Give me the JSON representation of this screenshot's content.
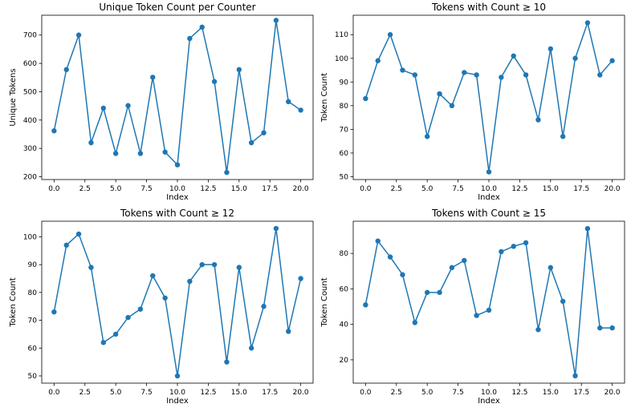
{
  "colors": {
    "series": "#1f77b4",
    "axes": "#000000",
    "background": "#ffffff"
  },
  "chart_data": [
    {
      "type": "line",
      "title": "Unique Token Count per Counter",
      "xlabel": "Index",
      "ylabel": "Unique Tokens",
      "xlim": [
        -1,
        21
      ],
      "ylim": [
        190,
        770
      ],
      "xticks": [
        0,
        2.5,
        5,
        7.5,
        10,
        12.5,
        15,
        17.5,
        20
      ],
      "xtick_labels": [
        "0.0",
        "2.5",
        "5.0",
        "7.5",
        "10.0",
        "12.5",
        "15.0",
        "17.5",
        "20.0"
      ],
      "yticks": [
        200,
        300,
        400,
        500,
        600,
        700
      ],
      "ytick_labels": [
        "200",
        "300",
        "400",
        "500",
        "600",
        "700"
      ],
      "grid": false,
      "marker": "circle",
      "x": [
        0,
        1,
        2,
        3,
        4,
        5,
        6,
        7,
        8,
        9,
        10,
        11,
        12,
        13,
        14,
        15,
        16,
        17,
        18,
        19,
        20
      ],
      "y": [
        362,
        578,
        700,
        320,
        442,
        282,
        451,
        282,
        551,
        287,
        242,
        688,
        728,
        536,
        215,
        578,
        320,
        355,
        752,
        465,
        435
      ]
    },
    {
      "type": "line",
      "title": "Tokens with Count ≥ 10",
      "xlabel": "Index",
      "ylabel": "Token Count",
      "xlim": [
        -1,
        21
      ],
      "ylim": [
        48.8,
        118.2
      ],
      "xticks": [
        0,
        2.5,
        5,
        7.5,
        10,
        12.5,
        15,
        17.5,
        20
      ],
      "xtick_labels": [
        "0.0",
        "2.5",
        "5.0",
        "7.5",
        "10.0",
        "12.5",
        "15.0",
        "17.5",
        "20.0"
      ],
      "yticks": [
        50,
        60,
        70,
        80,
        90,
        100,
        110
      ],
      "ytick_labels": [
        "50",
        "60",
        "70",
        "80",
        "90",
        "100",
        "110"
      ],
      "grid": false,
      "marker": "circle",
      "x": [
        0,
        1,
        2,
        3,
        4,
        5,
        6,
        7,
        8,
        9,
        10,
        11,
        12,
        13,
        14,
        15,
        16,
        17,
        18,
        19,
        20
      ],
      "y": [
        83,
        99,
        110,
        95,
        93,
        67,
        85,
        80,
        94,
        93,
        52,
        92,
        101,
        93,
        74,
        104,
        67,
        100,
        115,
        93,
        99
      ]
    },
    {
      "type": "line",
      "title": "Tokens with Count ≥ 12",
      "xlabel": "Index",
      "ylabel": "Token Count",
      "xlim": [
        -1,
        21
      ],
      "ylim": [
        47.4,
        105.6
      ],
      "xticks": [
        0,
        2.5,
        5,
        7.5,
        10,
        12.5,
        15,
        17.5,
        20
      ],
      "xtick_labels": [
        "0.0",
        "2.5",
        "5.0",
        "7.5",
        "10.0",
        "12.5",
        "15.0",
        "17.5",
        "20.0"
      ],
      "yticks": [
        50,
        60,
        70,
        80,
        90,
        100
      ],
      "ytick_labels": [
        "50",
        "60",
        "70",
        "80",
        "90",
        "100"
      ],
      "grid": false,
      "marker": "circle",
      "x": [
        0,
        1,
        2,
        3,
        4,
        5,
        6,
        7,
        8,
        9,
        10,
        11,
        12,
        13,
        14,
        15,
        16,
        17,
        18,
        19,
        20
      ],
      "y": [
        73,
        97,
        101,
        89,
        62,
        65,
        71,
        74,
        86,
        78,
        50,
        84,
        90,
        90,
        55,
        89,
        60,
        75,
        103,
        66,
        85
      ]
    },
    {
      "type": "line",
      "title": "Tokens with Count ≥ 15",
      "xlabel": "Index",
      "ylabel": "Token Count",
      "xlim": [
        -1,
        21
      ],
      "ylim": [
        6.85,
        98.15
      ],
      "xticks": [
        0,
        2.5,
        5,
        7.5,
        10,
        12.5,
        15,
        17.5,
        20
      ],
      "xtick_labels": [
        "0.0",
        "2.5",
        "5.0",
        "7.5",
        "10.0",
        "12.5",
        "15.0",
        "17.5",
        "20.0"
      ],
      "yticks": [
        20,
        40,
        60,
        80
      ],
      "ytick_labels": [
        "20",
        "40",
        "60",
        "80"
      ],
      "grid": false,
      "marker": "circle",
      "x": [
        0,
        1,
        2,
        3,
        4,
        5,
        6,
        7,
        8,
        9,
        10,
        11,
        12,
        13,
        14,
        15,
        16,
        17,
        18,
        19,
        20
      ],
      "y": [
        51,
        87,
        78,
        68,
        41,
        58,
        58,
        72,
        76,
        45,
        48,
        81,
        84,
        86,
        37,
        72,
        53,
        11,
        94,
        38,
        38
      ]
    }
  ]
}
